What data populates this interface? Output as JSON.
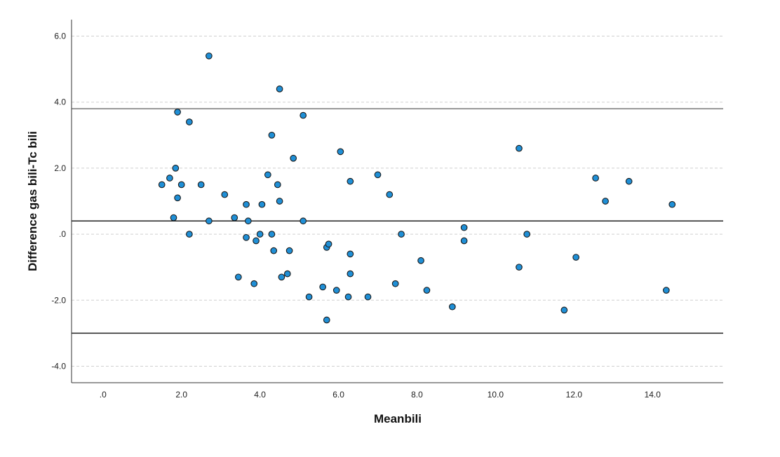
{
  "chart_data": {
    "type": "scatter",
    "title": "",
    "xlabel": "Meanbili",
    "ylabel": "Difference gas bili-Tc bili",
    "xlim": [
      -0.8,
      15.8
    ],
    "ylim": [
      -4.5,
      6.5
    ],
    "x_ticks": [
      0,
      2,
      4,
      6,
      8,
      10,
      12,
      14
    ],
    "x_tick_labels": [
      ".0",
      "2.0",
      "4.0",
      "6.0",
      "8.0",
      "10.0",
      "12.0",
      "14.0"
    ],
    "y_ticks": [
      -4,
      -2,
      0,
      2,
      4,
      6
    ],
    "y_tick_labels": [
      "-4.0",
      "-2.0",
      ".0",
      "2.0",
      "4.0",
      "6.0"
    ],
    "grid": "horizontal dashed",
    "reference_lines": [
      {
        "y": 3.8,
        "color": "#777777"
      },
      {
        "y": 0.4,
        "color": "#222222"
      },
      {
        "y": -3.0,
        "color": "#222222"
      }
    ],
    "marker_color": "#1f8fd6",
    "marker_edge": "#1a1a1a",
    "points": [
      [
        1.5,
        1.5
      ],
      [
        1.7,
        1.7
      ],
      [
        1.8,
        0.5
      ],
      [
        1.85,
        2.0
      ],
      [
        1.9,
        1.1
      ],
      [
        1.9,
        3.7
      ],
      [
        2.0,
        1.5
      ],
      [
        2.2,
        3.4
      ],
      [
        2.2,
        0.0
      ],
      [
        2.5,
        1.5
      ],
      [
        2.7,
        5.4
      ],
      [
        2.7,
        0.4
      ],
      [
        3.1,
        1.2
      ],
      [
        3.35,
        0.5
      ],
      [
        3.45,
        -1.3
      ],
      [
        3.65,
        0.9
      ],
      [
        3.65,
        -0.1
      ],
      [
        3.7,
        0.4
      ],
      [
        3.85,
        -1.5
      ],
      [
        3.9,
        -0.2
      ],
      [
        4.0,
        0.0
      ],
      [
        4.05,
        0.9
      ],
      [
        4.2,
        1.8
      ],
      [
        4.3,
        3.0
      ],
      [
        4.3,
        0.0
      ],
      [
        4.35,
        -0.5
      ],
      [
        4.45,
        1.5
      ],
      [
        4.5,
        4.4
      ],
      [
        4.5,
        1.0
      ],
      [
        4.55,
        -1.3
      ],
      [
        4.7,
        -1.2
      ],
      [
        4.75,
        -0.5
      ],
      [
        4.85,
        2.3
      ],
      [
        5.1,
        3.6
      ],
      [
        5.1,
        0.4
      ],
      [
        5.25,
        -1.9
      ],
      [
        5.6,
        -1.6
      ],
      [
        5.7,
        -0.4
      ],
      [
        5.7,
        -2.6
      ],
      [
        5.75,
        -0.3
      ],
      [
        5.95,
        -1.7
      ],
      [
        6.05,
        2.5
      ],
      [
        6.25,
        -1.9
      ],
      [
        6.3,
        1.6
      ],
      [
        6.3,
        -0.6
      ],
      [
        6.3,
        -1.2
      ],
      [
        6.75,
        -1.9
      ],
      [
        7.0,
        1.8
      ],
      [
        7.3,
        1.2
      ],
      [
        7.45,
        -1.5
      ],
      [
        7.6,
        0.0
      ],
      [
        8.1,
        -0.8
      ],
      [
        8.25,
        -1.7
      ],
      [
        8.9,
        -2.2
      ],
      [
        9.2,
        0.2
      ],
      [
        9.2,
        -0.2
      ],
      [
        10.6,
        2.6
      ],
      [
        10.6,
        -1.0
      ],
      [
        10.8,
        0.0
      ],
      [
        11.75,
        -2.3
      ],
      [
        12.05,
        -0.7
      ],
      [
        12.55,
        1.7
      ],
      [
        12.8,
        1.0
      ],
      [
        13.4,
        1.6
      ],
      [
        14.35,
        -1.7
      ],
      [
        14.5,
        0.9
      ]
    ]
  }
}
